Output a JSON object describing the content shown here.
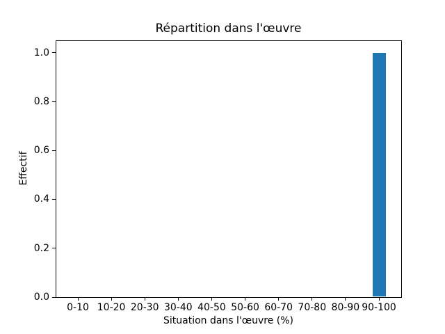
{
  "chart_data": {
    "type": "bar",
    "title": "Répartition dans l'œuvre",
    "xlabel": "Situation dans l'œuvre (%)",
    "ylabel": "Effectif",
    "categories": [
      "0-10",
      "10-20",
      "20-30",
      "30-40",
      "40-50",
      "50-60",
      "60-70",
      "70-80",
      "80-90",
      "90-100"
    ],
    "values": [
      0,
      0,
      0,
      0,
      0,
      0,
      0,
      0,
      0,
      1
    ],
    "ytick_labels": [
      "0.0",
      "0.2",
      "0.4",
      "0.6",
      "0.8",
      "1.0"
    ],
    "ylim": [
      0,
      1.05
    ],
    "bar_color": "#1f77b4",
    "grid": false,
    "legend": null,
    "background_color": "#ffffff",
    "spine_color": "#000000"
  }
}
